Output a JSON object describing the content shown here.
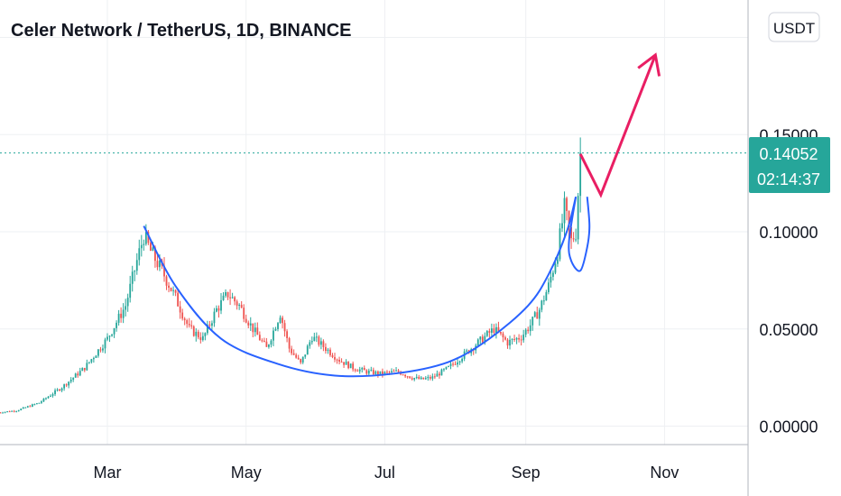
{
  "header": {
    "title": "Celer Network / TetherUS, 1D, BINANCE"
  },
  "currency_button": {
    "label": "USDT"
  },
  "price_tag": {
    "price": "0.14052",
    "countdown": "02:14:37"
  },
  "colors": {
    "up": "#26a69a",
    "down": "#ef5350",
    "cup": "#2962ff",
    "arrow": "#e91e63",
    "tag": "#26a69a",
    "lastline": "#26a69a"
  },
  "chart_data": {
    "type": "candlestick",
    "title": "Celer Network / TetherUS, 1D, BINANCE",
    "x_ticks": [
      {
        "label": "Mar",
        "day": 0
      },
      {
        "label": "May",
        "day": 61
      },
      {
        "label": "Jul",
        "day": 122
      },
      {
        "label": "Sep",
        "day": 184
      },
      {
        "label": "Nov",
        "day": 245
      }
    ],
    "y_ticks": [
      "0.00000",
      "0.05000",
      "0.10000",
      "0.15000"
    ],
    "ylim": [
      0,
      0.2
    ],
    "last_price": 0.14052,
    "anchors": [
      [
        -48,
        0.007
      ],
      [
        -40,
        0.008
      ],
      [
        -30,
        0.012
      ],
      [
        -20,
        0.02
      ],
      [
        -10,
        0.03
      ],
      [
        0,
        0.045
      ],
      [
        8,
        0.062
      ],
      [
        13,
        0.085
      ],
      [
        16,
        0.098
      ],
      [
        19,
        0.09
      ],
      [
        24,
        0.08
      ],
      [
        30,
        0.066
      ],
      [
        36,
        0.05
      ],
      [
        42,
        0.045
      ],
      [
        48,
        0.06
      ],
      [
        53,
        0.068
      ],
      [
        58,
        0.062
      ],
      [
        64,
        0.05
      ],
      [
        70,
        0.04
      ],
      [
        76,
        0.058
      ],
      [
        80,
        0.04
      ],
      [
        85,
        0.032
      ],
      [
        90,
        0.046
      ],
      [
        96,
        0.04
      ],
      [
        102,
        0.034
      ],
      [
        108,
        0.03
      ],
      [
        114,
        0.028
      ],
      [
        120,
        0.027
      ],
      [
        128,
        0.028
      ],
      [
        134,
        0.025
      ],
      [
        138,
        0.024
      ],
      [
        143,
        0.025
      ],
      [
        150,
        0.03
      ],
      [
        158,
        0.038
      ],
      [
        166,
        0.046
      ],
      [
        170,
        0.05
      ],
      [
        176,
        0.043
      ],
      [
        182,
        0.046
      ],
      [
        186,
        0.052
      ],
      [
        190,
        0.06
      ],
      [
        194,
        0.072
      ],
      [
        198,
        0.09
      ],
      [
        201,
        0.112
      ],
      [
        204,
        0.095
      ],
      [
        206,
        0.1
      ],
      [
        208,
        0.1405
      ]
    ],
    "annotations": {
      "cup": [
        [
          16,
          0.103
        ],
        [
          30,
          0.072
        ],
        [
          50,
          0.045
        ],
        [
          75,
          0.032
        ],
        [
          100,
          0.026
        ],
        [
          126,
          0.027
        ],
        [
          150,
          0.033
        ],
        [
          168,
          0.045
        ],
        [
          185,
          0.062
        ],
        [
          194,
          0.078
        ],
        [
          202,
          0.1
        ],
        [
          206,
          0.118
        ]
      ],
      "handle": [
        [
          206,
          0.118
        ],
        [
          203,
          0.095
        ],
        [
          204,
          0.085
        ],
        [
          208,
          0.08
        ],
        [
          211,
          0.092
        ],
        [
          212,
          0.103
        ],
        [
          211,
          0.118
        ]
      ],
      "arrow": [
        [
          208,
          0.14
        ],
        [
          217,
          0.119
        ],
        [
          241,
          0.191
        ]
      ]
    }
  }
}
